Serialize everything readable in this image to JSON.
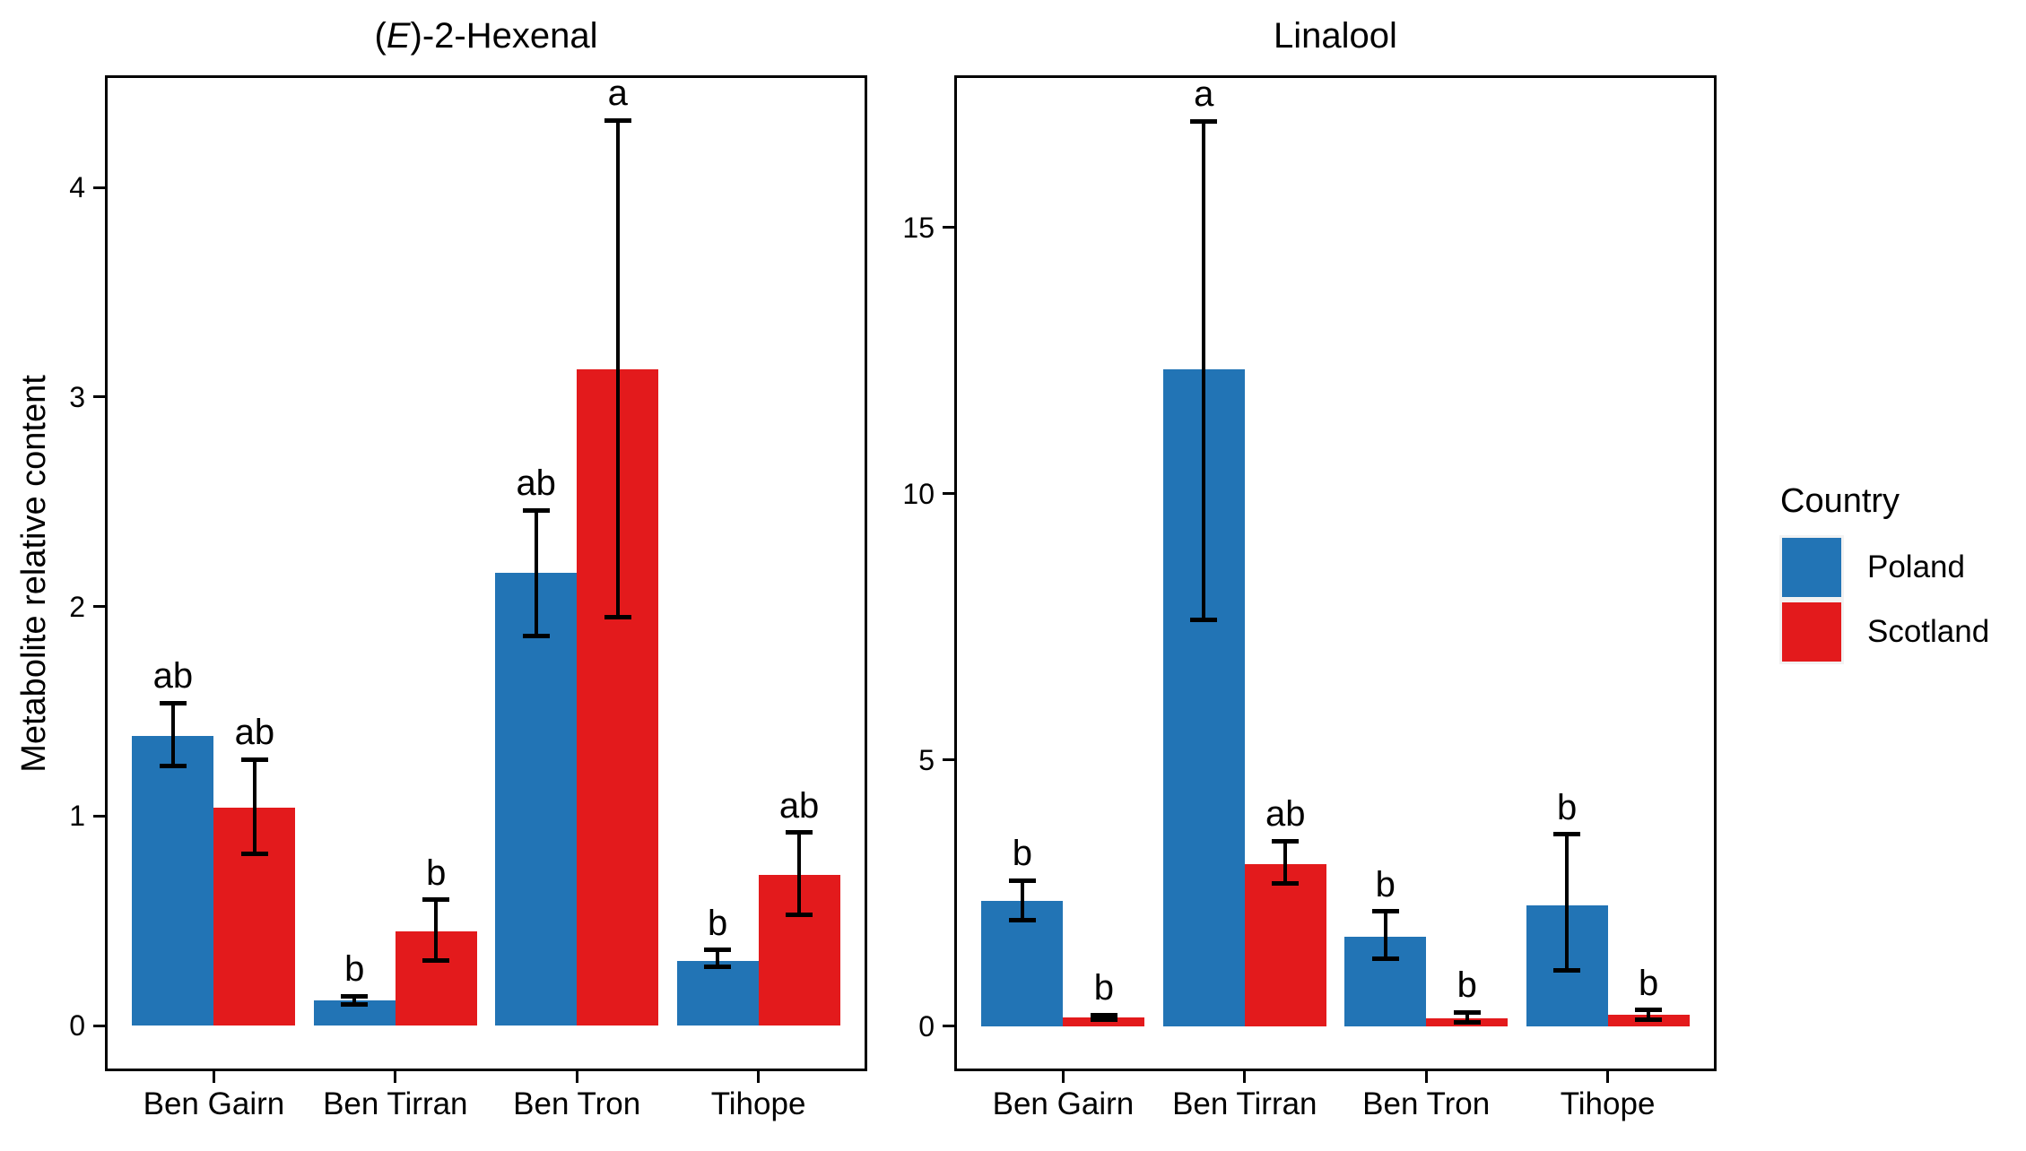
{
  "figure": {
    "ylabel": "Metabolite relative content",
    "background": "#FFFFFF",
    "text_color": "#000000"
  },
  "legend": {
    "title": "Country",
    "entries": [
      {
        "label": "Poland",
        "color": "#2274B5"
      },
      {
        "label": "Scotland",
        "color": "#E31A1C"
      }
    ],
    "position": "right"
  },
  "chart_data": [
    {
      "type": "bar",
      "title": "(E)-2-Hexenal",
      "title_parts": {
        "pre": "(",
        "it": "E",
        "post": ")-2-Hexenal"
      },
      "categories": [
        "Ben Gairn",
        "Ben Tirran",
        "Ben Tron",
        "Tihope"
      ],
      "series": [
        {
          "name": "Poland",
          "color": "#2274B5",
          "values": [
            1.38,
            0.12,
            2.16,
            0.31
          ],
          "err_low": [
            1.24,
            0.1,
            1.86,
            0.28
          ],
          "err_high": [
            1.54,
            0.14,
            2.46,
            0.36
          ],
          "letters": [
            "ab",
            "b",
            "ab",
            "b"
          ]
        },
        {
          "name": "Scotland",
          "color": "#E31A1C",
          "values": [
            1.04,
            0.45,
            3.13,
            0.72
          ],
          "err_low": [
            0.82,
            0.31,
            1.95,
            0.53
          ],
          "err_high": [
            1.27,
            0.6,
            4.32,
            0.92
          ],
          "letters": [
            "ab",
            "b",
            "a",
            "ab"
          ]
        }
      ],
      "ylabel": "Metabolite relative content",
      "xlabel": "",
      "yticks": [
        0,
        1,
        2,
        3,
        4
      ],
      "ylim": [
        -0.218,
        4.535
      ],
      "grid": false,
      "error_bars": true,
      "legend_position": "right"
    },
    {
      "type": "bar",
      "title": "Linalool",
      "title_parts": {
        "pre": "",
        "it": "",
        "post": "Linalool"
      },
      "categories": [
        "Ben Gairn",
        "Ben Tirran",
        "Ben Tron",
        "Tihope"
      ],
      "series": [
        {
          "name": "Poland",
          "color": "#2274B5",
          "values": [
            2.36,
            12.34,
            1.68,
            2.27
          ],
          "err_low": [
            1.99,
            7.63,
            1.26,
            1.05
          ],
          "err_high": [
            2.74,
            17.0,
            2.16,
            3.6
          ],
          "letters": [
            "b",
            "a",
            "b",
            "b"
          ]
        },
        {
          "name": "Scotland",
          "color": "#E31A1C",
          "values": [
            0.17,
            3.05,
            0.14,
            0.21
          ],
          "err_low": [
            0.12,
            2.68,
            0.07,
            0.13
          ],
          "err_high": [
            0.21,
            3.48,
            0.26,
            0.3
          ],
          "letters": [
            "b",
            "ab",
            "b",
            "b"
          ]
        }
      ],
      "ylabel": "Metabolite relative content",
      "xlabel": "",
      "yticks": [
        0,
        5,
        10,
        15
      ],
      "ylim": [
        -0.845,
        17.86
      ],
      "grid": false,
      "error_bars": true,
      "legend_position": "right"
    }
  ]
}
